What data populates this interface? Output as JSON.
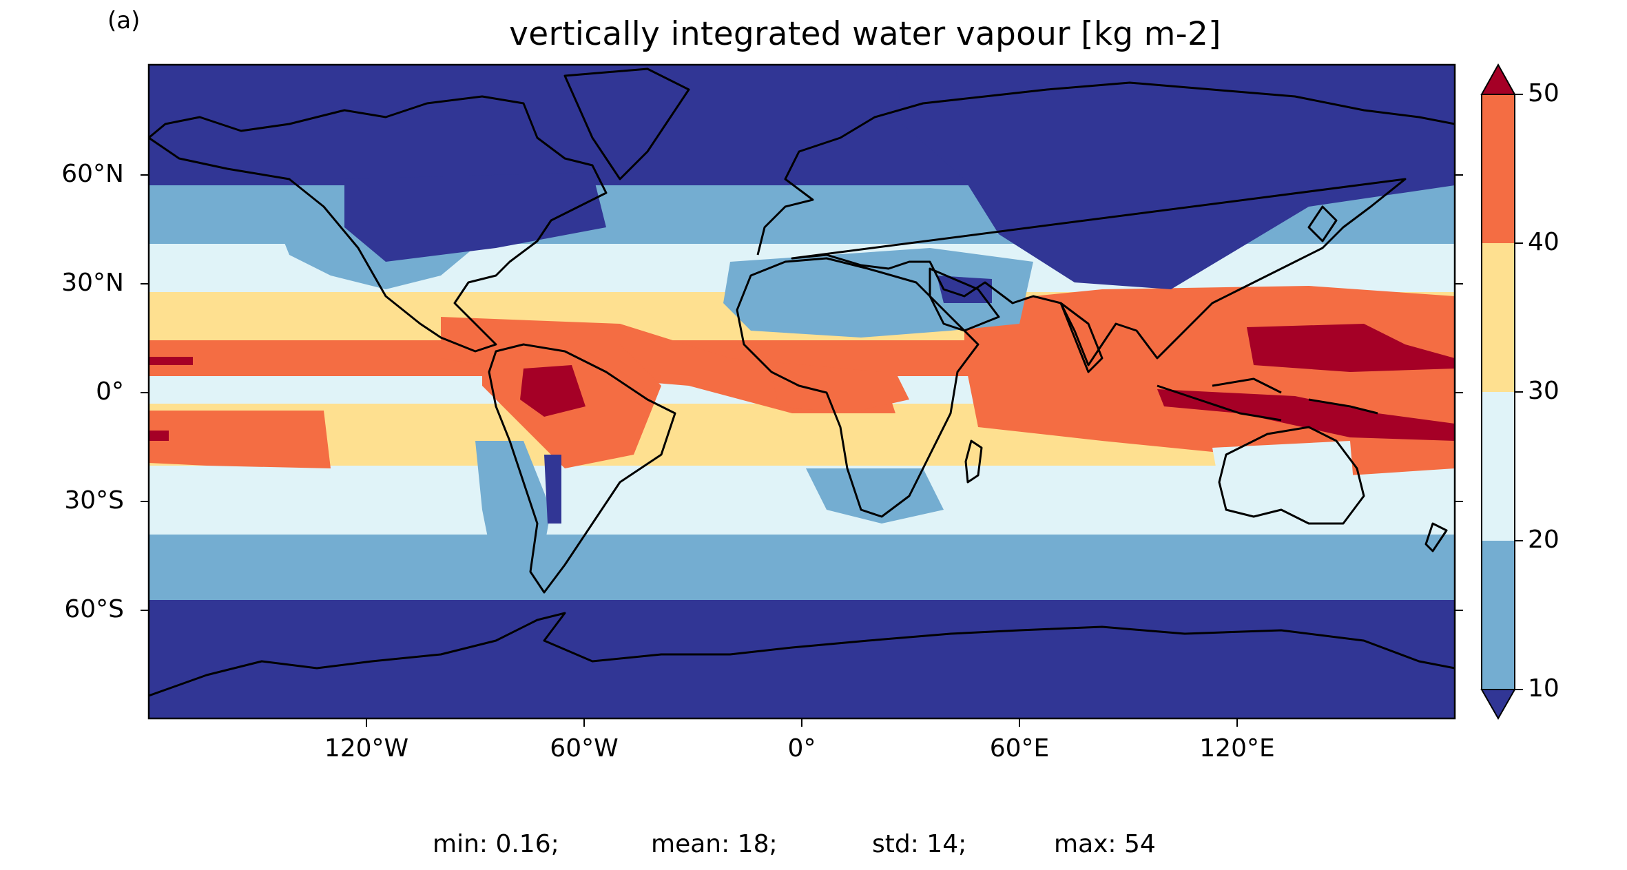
{
  "panel_label": "(a)",
  "title": "vertically integrated water vapour [kg m-2]",
  "map": {
    "projection": "PlateCarree",
    "field": "vertically integrated water vapour",
    "lat_ticks": [
      "60°N",
      "30°N",
      "0°",
      "30°S",
      "60°S"
    ],
    "lon_ticks": [
      "120°W",
      "60°W",
      "0°",
      "60°E",
      "120°E"
    ],
    "coastlines": true
  },
  "colorbar": {
    "levels": [
      "10",
      "20",
      "30",
      "40",
      "50"
    ],
    "colors": [
      "#313695",
      "#74add1",
      "#e0f3f8",
      "#fee090",
      "#f46d43",
      "#a50026"
    ],
    "extend": "both"
  },
  "stats": {
    "min": "min: 0.16;",
    "mean": "mean: 18;",
    "std": "std: 14;",
    "max": "max: 54"
  },
  "chart_data": {
    "type": "heatmap",
    "title": "vertically integrated water vapour [kg m-2]",
    "xlim": [
      -180,
      180
    ],
    "ylim": [
      -90,
      90
    ],
    "colorbar_levels": [
      10,
      20,
      30,
      40,
      50
    ],
    "stats": {
      "min": 0.16,
      "mean": 18,
      "std": 14,
      "max": 54
    }
  }
}
